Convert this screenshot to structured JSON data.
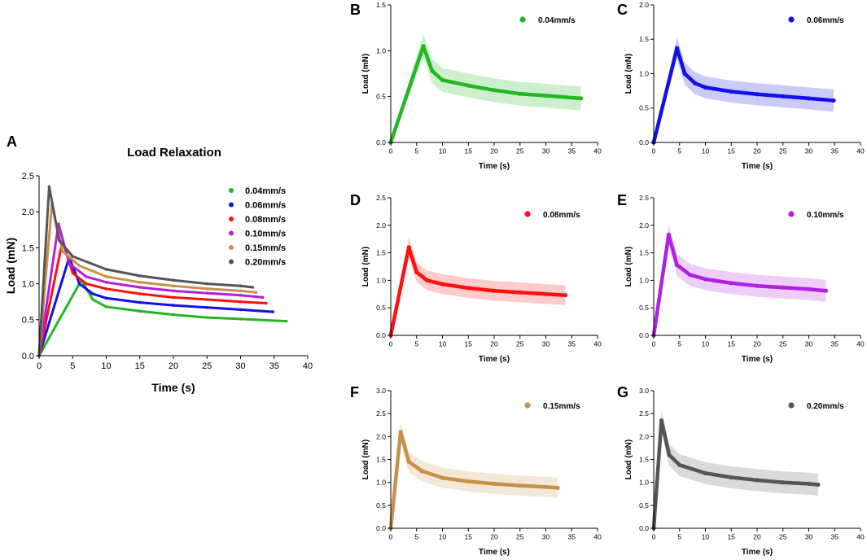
{
  "figure": "Load relaxation curves at six loading rates",
  "chart_data": [
    {
      "panel": "A",
      "type": "line",
      "title": "Load Relaxation",
      "xlabel": "Time (s)",
      "ylabel": "Load (mN)",
      "xlim": [
        0,
        40
      ],
      "ylim": [
        0,
        2.5
      ],
      "xticks": [
        "0",
        "5",
        "10",
        "15",
        "20",
        "25",
        "30",
        "35",
        "40"
      ],
      "yticks": [
        "0.0",
        "0.5",
        "1.0",
        "1.5",
        "2.0",
        "2.5"
      ],
      "legend_position": "top-right",
      "series": [
        {
          "name": "0.04mm/s",
          "color": "#22b822",
          "x": [
            0,
            6.3,
            8,
            10,
            15,
            20,
            25,
            30,
            36.8
          ],
          "y": [
            0,
            1.05,
            0.78,
            0.68,
            0.62,
            0.57,
            0.53,
            0.51,
            0.48
          ]
        },
        {
          "name": "0.06mm/s",
          "color": "#1010e8",
          "x": [
            0,
            4.5,
            6,
            8,
            10,
            15,
            20,
            25,
            30,
            34.8
          ],
          "y": [
            0,
            1.37,
            1.0,
            0.86,
            0.8,
            0.74,
            0.7,
            0.67,
            0.64,
            0.61
          ]
        },
        {
          "name": "0.08mm/s",
          "color": "#ff1010",
          "x": [
            0,
            3.5,
            5,
            7,
            10,
            15,
            20,
            25,
            30,
            33.8
          ],
          "y": [
            0,
            1.6,
            1.15,
            1.0,
            0.93,
            0.86,
            0.81,
            0.78,
            0.75,
            0.73
          ]
        },
        {
          "name": "0.10mm/s",
          "color": "#b020e0",
          "x": [
            0,
            2.9,
            4.5,
            7,
            10,
            15,
            20,
            25,
            30,
            33.3
          ],
          "y": [
            0,
            1.83,
            1.28,
            1.1,
            1.02,
            0.95,
            0.9,
            0.87,
            0.84,
            0.81
          ]
        },
        {
          "name": "0.15mm/s",
          "color": "#c8914a",
          "x": [
            0,
            1.9,
            3.5,
            6,
            10,
            15,
            20,
            25,
            30,
            32.3
          ],
          "y": [
            0,
            2.1,
            1.45,
            1.25,
            1.1,
            1.02,
            0.97,
            0.93,
            0.9,
            0.88
          ]
        },
        {
          "name": "0.20mm/s",
          "color": "#555555",
          "x": [
            0,
            1.5,
            3,
            5,
            10,
            15,
            20,
            25,
            30,
            31.8
          ],
          "y": [
            0,
            2.35,
            1.6,
            1.38,
            1.2,
            1.11,
            1.05,
            1.0,
            0.97,
            0.95
          ]
        }
      ]
    },
    {
      "panel": "B",
      "type": "line",
      "xlabel": "Time (s)",
      "ylabel": "Load (mN)",
      "xlim": [
        0,
        40
      ],
      "ylim": [
        0,
        1.5
      ],
      "xticks": [
        "0",
        "5",
        "10",
        "15",
        "20",
        "25",
        "30",
        "35",
        "40"
      ],
      "yticks": [
        "0.0",
        "0.5",
        "1.0",
        "1.5"
      ],
      "legend_position": "top-right",
      "series": [
        {
          "name": "0.04mm/s",
          "color": "#22b822",
          "x": [
            0,
            6.3,
            8,
            10,
            15,
            20,
            25,
            30,
            36.8
          ],
          "y": [
            0,
            1.05,
            0.78,
            0.68,
            0.62,
            0.57,
            0.53,
            0.51,
            0.48
          ],
          "band": 0.13
        }
      ]
    },
    {
      "panel": "C",
      "type": "line",
      "xlabel": "Time (s)",
      "ylabel": "Load (mN)",
      "xlim": [
        0,
        40
      ],
      "ylim": [
        0,
        2.0
      ],
      "xticks": [
        "0",
        "5",
        "10",
        "15",
        "20",
        "25",
        "30",
        "35",
        "40"
      ],
      "yticks": [
        "0.0",
        "0.5",
        "1.0",
        "1.5",
        "2.0"
      ],
      "legend_position": "top-right",
      "series": [
        {
          "name": "0.06mm/s",
          "color": "#1010e8",
          "x": [
            0,
            4.5,
            6,
            8,
            10,
            15,
            20,
            25,
            30,
            34.8
          ],
          "y": [
            0,
            1.37,
            1.0,
            0.86,
            0.8,
            0.74,
            0.7,
            0.67,
            0.64,
            0.61
          ],
          "band": 0.16
        }
      ]
    },
    {
      "panel": "D",
      "type": "line",
      "xlabel": "Time (s)",
      "ylabel": "Load (mN)",
      "xlim": [
        0,
        40
      ],
      "ylim": [
        0,
        2.5
      ],
      "xticks": [
        "0",
        "5",
        "10",
        "15",
        "20",
        "25",
        "30",
        "35",
        "40"
      ],
      "yticks": [
        "0.0",
        "0.5",
        "1.0",
        "1.5",
        "2.0",
        "2.5"
      ],
      "legend_position": "top-right",
      "series": [
        {
          "name": "0.08mm/s",
          "color": "#ff1010",
          "x": [
            0,
            3.5,
            5,
            7,
            10,
            15,
            20,
            25,
            30,
            33.8
          ],
          "y": [
            0,
            1.6,
            1.15,
            1.0,
            0.93,
            0.86,
            0.81,
            0.78,
            0.75,
            0.73
          ],
          "band": 0.18
        }
      ]
    },
    {
      "panel": "E",
      "type": "line",
      "xlabel": "Time (s)",
      "ylabel": "Load (mN)",
      "xlim": [
        0,
        40
      ],
      "ylim": [
        0,
        2.5
      ],
      "xticks": [
        "0",
        "5",
        "10",
        "15",
        "20",
        "25",
        "30",
        "35",
        "40"
      ],
      "yticks": [
        "0.0",
        "0.5",
        "1.0",
        "1.5",
        "2.0",
        "2.5"
      ],
      "legend_position": "top-right",
      "series": [
        {
          "name": "0.10mm/s",
          "color": "#b020e0",
          "x": [
            0,
            2.9,
            4.5,
            7,
            10,
            15,
            20,
            25,
            30,
            33.3
          ],
          "y": [
            0,
            1.83,
            1.28,
            1.1,
            1.02,
            0.95,
            0.9,
            0.87,
            0.84,
            0.81
          ],
          "band": 0.2
        }
      ]
    },
    {
      "panel": "F",
      "type": "line",
      "xlabel": "Time (s)",
      "ylabel": "Load (mN)",
      "xlim": [
        0,
        40
      ],
      "ylim": [
        0,
        3.0
      ],
      "xticks": [
        "0",
        "5",
        "10",
        "15",
        "20",
        "25",
        "30",
        "35",
        "40"
      ],
      "yticks": [
        "0.0",
        "0.5",
        "1.0",
        "1.5",
        "2.0",
        "2.5",
        "3.0"
      ],
      "legend_position": "top-right",
      "series": [
        {
          "name": "0.15mm/s",
          "color": "#c8914a",
          "x": [
            0,
            1.9,
            3.5,
            6,
            10,
            15,
            20,
            25,
            30,
            32.3
          ],
          "y": [
            0,
            2.1,
            1.45,
            1.25,
            1.1,
            1.02,
            0.97,
            0.93,
            0.9,
            0.88
          ],
          "band": 0.22
        }
      ]
    },
    {
      "panel": "G",
      "type": "line",
      "xlabel": "Time (s)",
      "ylabel": "Load (mN)",
      "xlim": [
        0,
        40
      ],
      "ylim": [
        0,
        3.0
      ],
      "xticks": [
        "0",
        "5",
        "10",
        "15",
        "20",
        "25",
        "30",
        "35",
        "40"
      ],
      "yticks": [
        "0.0",
        "0.5",
        "1.0",
        "1.5",
        "2.0",
        "2.5",
        "3.0"
      ],
      "legend_position": "top-right",
      "series": [
        {
          "name": "0.20mm/s",
          "color": "#555555",
          "x": [
            0,
            1.5,
            3,
            5,
            10,
            15,
            20,
            25,
            30,
            31.8
          ],
          "y": [
            0,
            2.35,
            1.6,
            1.38,
            1.2,
            1.11,
            1.05,
            1.0,
            0.97,
            0.95
          ],
          "band": 0.24
        }
      ]
    }
  ]
}
